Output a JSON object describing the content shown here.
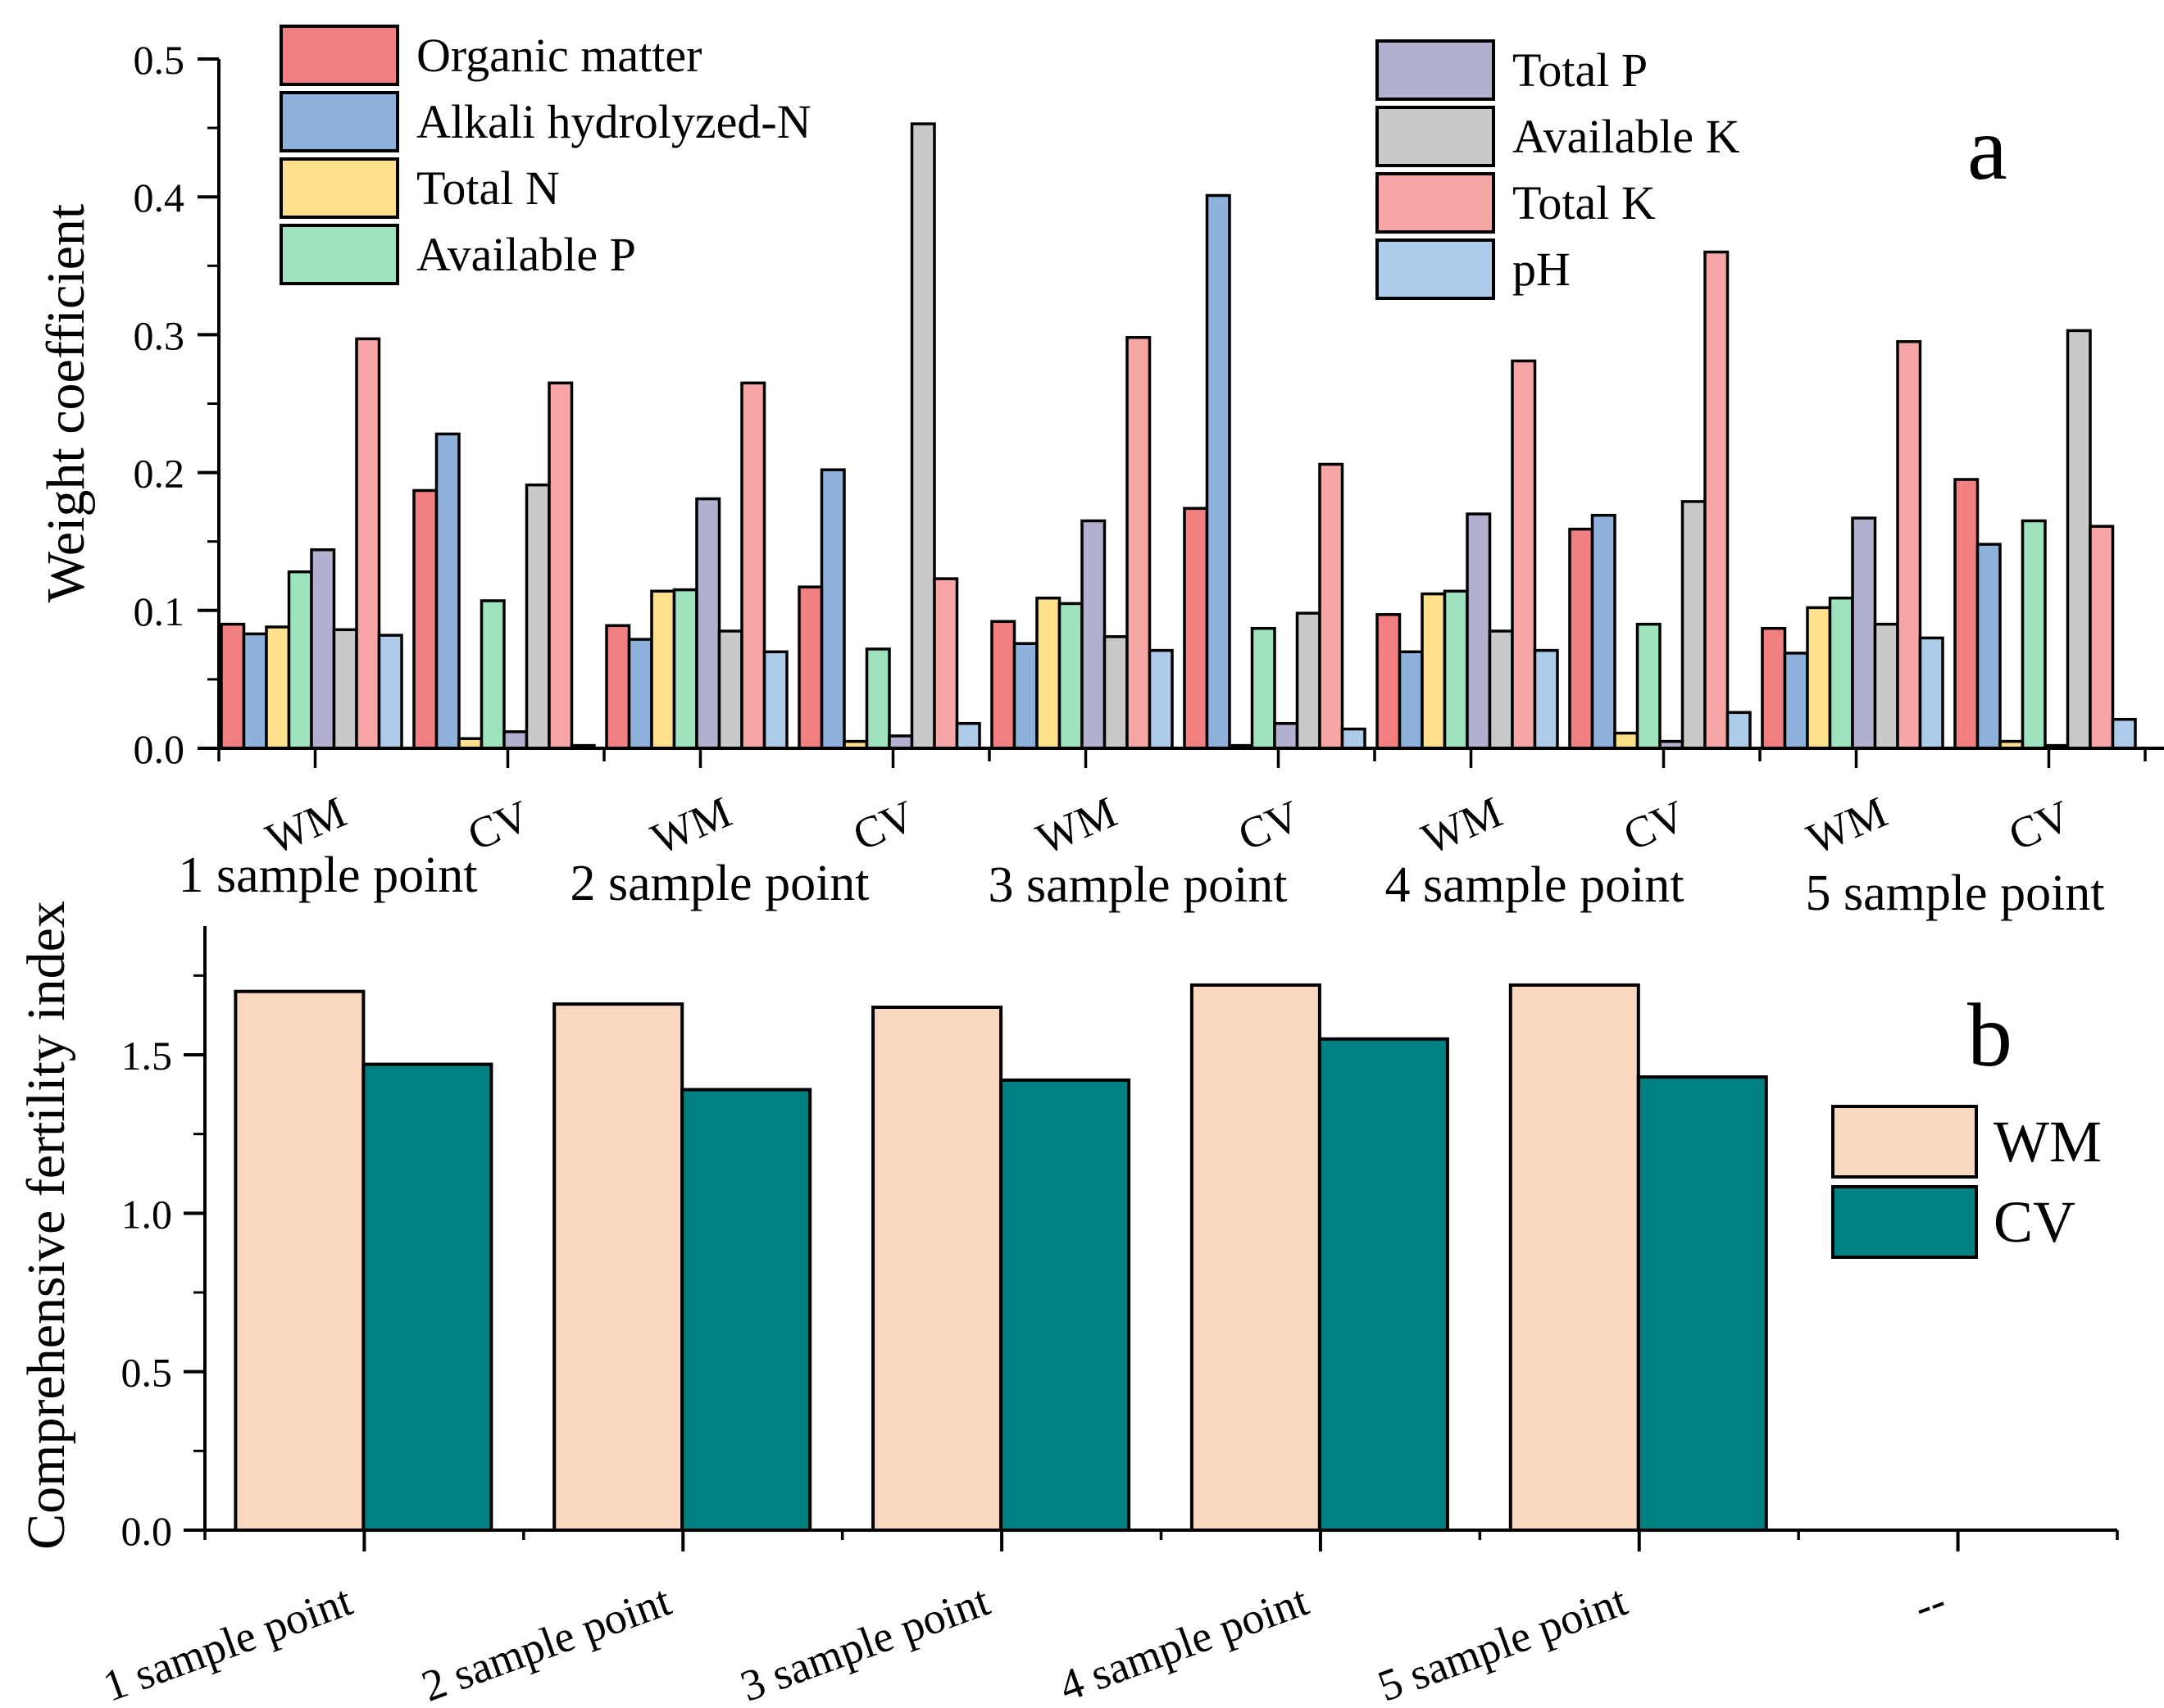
{
  "chart_data": [
    {
      "type": "bar",
      "panel_label": "a",
      "ylabel": "Weight coefficient",
      "ylim": [
        0,
        0.5
      ],
      "y_ticks": [
        "0.0",
        "0.1",
        "0.2",
        "0.3",
        "0.4",
        "0.5"
      ],
      "categories": [
        "WM",
        "CV",
        "WM",
        "CV",
        "WM",
        "CV",
        "WM",
        "CV",
        "WM",
        "CV"
      ],
      "groups": [
        "1 sample point",
        "2 sample point",
        "3 sample point",
        "4 sample point",
        "5 sample point"
      ],
      "series": [
        {
          "name": "Organic matter",
          "color": "#F28080",
          "values": [
            0.09,
            0.187,
            0.089,
            0.117,
            0.092,
            0.174,
            0.097,
            0.159,
            0.087,
            0.195
          ]
        },
        {
          "name": "Alkali hydrolyzed-N",
          "color": "#8EB1DB",
          "values": [
            0.083,
            0.228,
            0.079,
            0.202,
            0.076,
            0.401,
            0.07,
            0.169,
            0.069,
            0.148
          ]
        },
        {
          "name": "Total N",
          "color": "#FFE08A",
          "values": [
            0.088,
            0.007,
            0.114,
            0.005,
            0.109,
            0.002,
            0.112,
            0.011,
            0.102,
            0.005
          ]
        },
        {
          "name": "Available P",
          "color": "#9EE3BD",
          "values": [
            0.128,
            0.107,
            0.115,
            0.072,
            0.105,
            0.087,
            0.114,
            0.09,
            0.109,
            0.165
          ]
        },
        {
          "name": "Total P",
          "color": "#B1B1CF",
          "values": [
            0.144,
            0.012,
            0.181,
            0.009,
            0.165,
            0.018,
            0.17,
            0.005,
            0.167,
            0.002
          ]
        },
        {
          "name": "Available K",
          "color": "#C9C9C9",
          "values": [
            0.086,
            0.191,
            0.085,
            0.453,
            0.081,
            0.098,
            0.085,
            0.179,
            0.09,
            0.303
          ]
        },
        {
          "name": "Total K",
          "color": "#F7A6A6",
          "values": [
            0.297,
            0.265,
            0.265,
            0.123,
            0.298,
            0.206,
            0.281,
            0.36,
            0.295,
            0.161
          ]
        },
        {
          "name": "pH",
          "color": "#AFCBEA",
          "values": [
            0.082,
            0.002,
            0.07,
            0.018,
            0.071,
            0.014,
            0.071,
            0.026,
            0.08,
            0.021
          ]
        }
      ]
    },
    {
      "type": "bar",
      "panel_label": "b",
      "ylabel": "Comprehensive fertility index",
      "ylim": [
        0,
        1.9
      ],
      "y_ticks": [
        "0.0",
        "0.5",
        "1.0",
        "1.5"
      ],
      "categories": [
        "1 sample point",
        "2 sample point",
        "3 sample point",
        "4 sample point",
        "5 sample point",
        "--"
      ],
      "series": [
        {
          "name": "WM",
          "color": "#F9D8BF",
          "values": [
            1.7,
            1.66,
            1.65,
            1.72,
            1.72,
            null
          ]
        },
        {
          "name": "CV",
          "color": "#008080",
          "values": [
            1.47,
            1.39,
            1.42,
            1.55,
            1.43,
            null
          ]
        }
      ]
    }
  ]
}
